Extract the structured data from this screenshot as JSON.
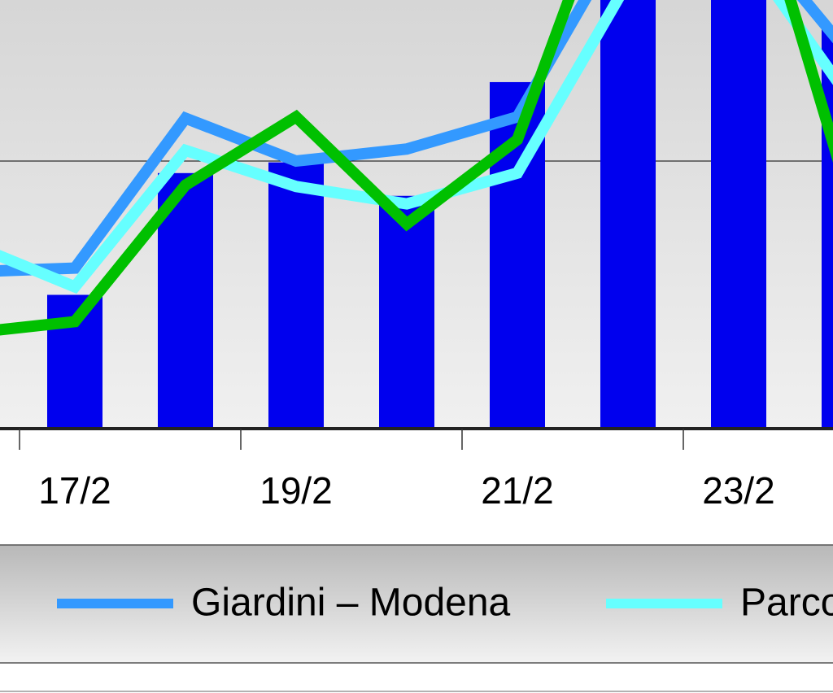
{
  "chart_data": {
    "type": "bar-line",
    "categories": [
      null,
      "17/2",
      null,
      "19/2",
      null,
      "21/2",
      null,
      "23/2",
      null
    ],
    "values": [
      null,
      10.0,
      19.1,
      19.9,
      17.4,
      25.9,
      35,
      35,
      30
    ],
    "color": "#0000ee",
    "series": [
      {
        "name": "Giardini – Modena",
        "color": "#3399ff",
        "values": [
          11.7,
          12.0,
          23.2,
          20.0,
          20.9,
          23.3,
          37.6,
          38,
          28
        ]
      },
      {
        "name": "Parco",
        "color": "#66ffff",
        "values": [
          14.0,
          10.6,
          20.8,
          18.1,
          16.8,
          19.1,
          33.4,
          36.4,
          24.7
        ]
      },
      {
        "color": "#00c000",
        "values": [
          7.1,
          8.0,
          18.2,
          23.3,
          15.3,
          21.6,
          44.1,
          45,
          17.3
        ]
      }
    ],
    "ylim": [
      0,
      40
    ],
    "yticks": [
      0,
      20
    ],
    "grid": true
  }
}
